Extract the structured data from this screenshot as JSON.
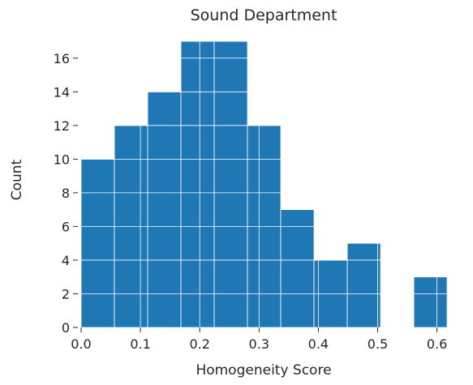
{
  "chart_data": {
    "type": "bar",
    "title": "Sound Department",
    "xlabel": "Homogeneity Score",
    "ylabel": "Count",
    "xlim": [
      0.0,
      0.617
    ],
    "ylim": [
      0,
      17
    ],
    "bin_width": 0.0561,
    "bins": [
      {
        "x0": 0.0,
        "x1": 0.0561,
        "count": 10
      },
      {
        "x0": 0.0561,
        "x1": 0.1122,
        "count": 12
      },
      {
        "x0": 0.1122,
        "x1": 0.1683,
        "count": 14
      },
      {
        "x0": 0.1683,
        "x1": 0.2244,
        "count": 17
      },
      {
        "x0": 0.2244,
        "x1": 0.2805,
        "count": 17
      },
      {
        "x0": 0.2805,
        "x1": 0.3366,
        "count": 12
      },
      {
        "x0": 0.3366,
        "x1": 0.3927,
        "count": 7
      },
      {
        "x0": 0.3927,
        "x1": 0.4488,
        "count": 4
      },
      {
        "x0": 0.4488,
        "x1": 0.5049,
        "count": 5
      },
      {
        "x0": 0.5049,
        "x1": 0.561,
        "count": 0
      },
      {
        "x0": 0.561,
        "x1": 0.6171,
        "count": 3
      }
    ],
    "xticks": [
      0.0,
      0.1,
      0.2,
      0.3,
      0.4,
      0.5,
      0.6
    ],
    "xtick_labels": [
      "0.0",
      "0.1",
      "0.2",
      "0.3",
      "0.4",
      "0.5",
      "0.6"
    ],
    "yticks": [
      0,
      2,
      4,
      6,
      8,
      10,
      12,
      14,
      16
    ],
    "ytick_labels": [
      "0",
      "2",
      "4",
      "6",
      "8",
      "10",
      "12",
      "14",
      "16"
    ],
    "grid": true,
    "color": "#1f77b4"
  }
}
